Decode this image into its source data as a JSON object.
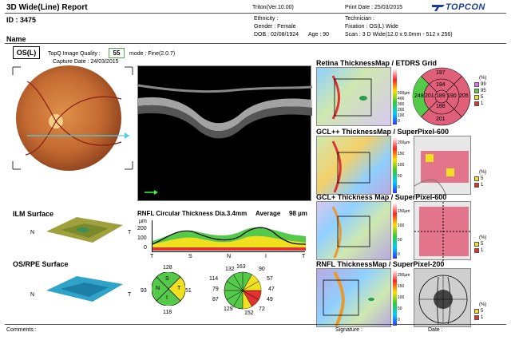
{
  "header": {
    "title": "3D Wide(Line) Report",
    "version": "Triton(Ver.10.00)",
    "print_date": "Print Date : 25/03/2015",
    "brand": "TOPCON",
    "id": "ID : 3475",
    "name_label": "Name",
    "ethnicity": "Ethnicity :",
    "gender": "Gender : Female",
    "dob": "DOB : 02/08/1924",
    "age": "Age : 90",
    "technician": "Technician :",
    "fixation": "Fixation : OS(L) Wide",
    "scan": "Scan : 3 D Wide(12.0 x 9.0mm - 512 x 256)"
  },
  "eye": {
    "label": "OS(L)",
    "quality_label": "TopQ Image Quality :",
    "quality_value": "55",
    "mode": "mode : Fine(2.0.7)",
    "capture_date": "Capture Date : 24/03/2015"
  },
  "surfaces": {
    "ilm": "ILM Surface",
    "osrpe": "OS/RPE Surface",
    "n": "N",
    "t": "T"
  },
  "rnfl_circ": {
    "title": "RNFL Circular Thickness Dia.3.4mm",
    "average_label": "Average",
    "average_value": "98 µm",
    "unit": "µm",
    "y_ticks": [
      "200",
      "100",
      "0"
    ],
    "x_ticks": [
      "T",
      "S",
      "N",
      "I",
      "T"
    ],
    "quadrant": {
      "S": "128",
      "N": "93",
      "T": "51",
      "I": "118",
      "s": "S",
      "n": "N",
      "t": "T",
      "i": "I"
    },
    "clock": [
      "163",
      "90",
      "57",
      "47",
      "49",
      "72",
      "152",
      "129",
      "87",
      "79",
      "114",
      "132"
    ]
  },
  "maps": {
    "retina": "Retina ThicknessMap / ETDRS Grid",
    "gcl_pp": "GCL++ ThicknessMap / SuperPixel-600",
    "gcl_p": "GCL+ Thickness Map / SuperPixel-600",
    "rnfl": "RNFL ThicknessMap / SuperPixel-200",
    "scales": {
      "retina": [
        "500µm",
        "400",
        "300",
        "200",
        "100",
        "0"
      ],
      "gcl_pp": [
        "200µm",
        "150",
        "100",
        "50",
        "0"
      ],
      "gcl_p": [
        "150µm",
        "100",
        "50",
        "0"
      ],
      "rnfl": [
        "200µm",
        "150",
        "100",
        "50",
        "0"
      ]
    },
    "etdrs": {
      "center": "188",
      "top": "197",
      "bottom": "201",
      "left": "248",
      "right": "205",
      "inner_top": "194",
      "inner_bottom": "188",
      "inner_left": "201",
      "inner_right": "190",
      "inner_center_right": "189"
    },
    "pct_legend": {
      "unit": "(%)",
      "a": "99",
      "b": "95",
      "c": "5",
      "d": "1"
    },
    "pct_legend_small": {
      "unit": "(%)",
      "a": "5",
      "b": "1"
    }
  },
  "footer": {
    "comments": "Comments :",
    "signature": "Signature :",
    "date": "Date :"
  }
}
